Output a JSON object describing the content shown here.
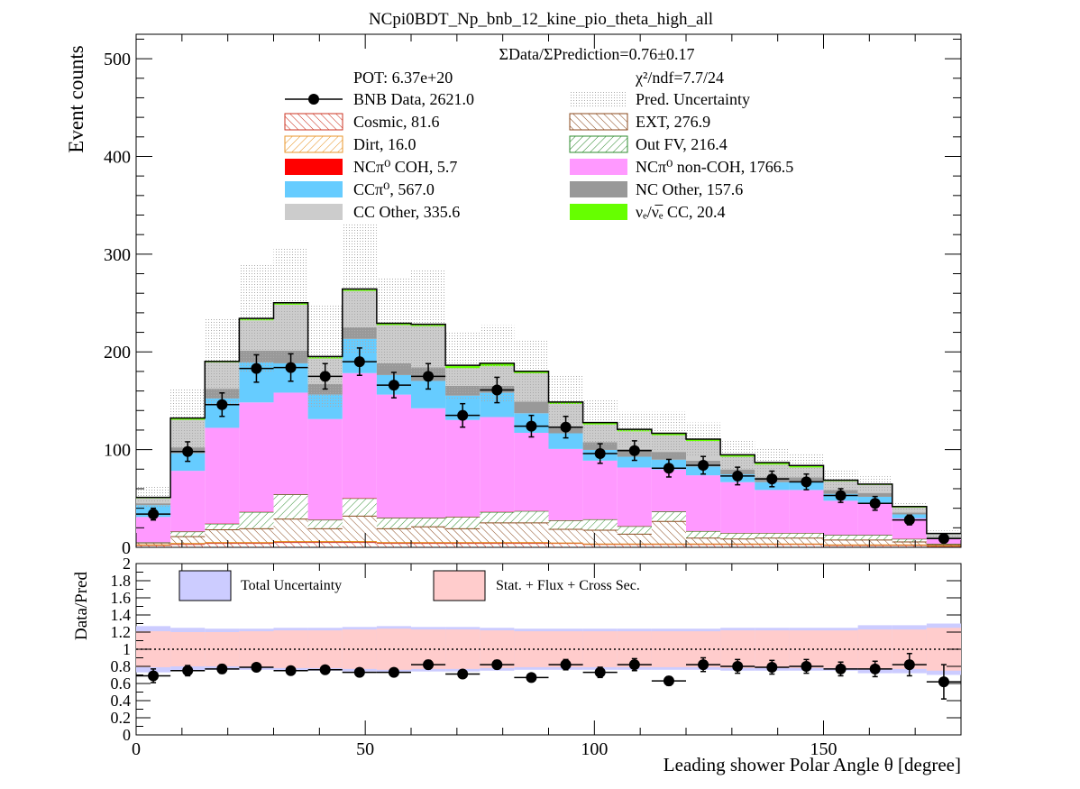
{
  "chart_data": [
    {
      "type": "bar",
      "stacked": true,
      "title": "NCpi0BDT_Np_bnb_12_kine_pio_theta_high_all",
      "xlabel": "Leading shower Polar Angle θ [degree]",
      "ylabel": "Event counts",
      "xlim": [
        0,
        180
      ],
      "ylim": [
        0,
        525
      ],
      "yticks": [
        0,
        100,
        200,
        300,
        400,
        500
      ],
      "bin_edges": [
        0,
        7.5,
        15,
        22.5,
        30,
        37.5,
        45,
        52.5,
        60,
        67.5,
        75,
        82.5,
        90,
        97.5,
        105,
        112.5,
        120,
        127.5,
        135,
        142.5,
        150,
        157.5,
        165,
        172.5,
        180
      ],
      "summary_text": {
        "ratio": "ΣData/ΣPrediction=0.76±0.17",
        "pot": "POT: 6.37e+20",
        "chi2": "χ²/ndf=7.7/24"
      },
      "legend": [
        {
          "label": "BNB Data, 2621.0",
          "style": "marker",
          "color": "#000000"
        },
        {
          "label": "Pred. Uncertainty",
          "style": "dots",
          "color": "#bbbbbb"
        },
        {
          "label": "Cosmic, 81.6",
          "style": "hatch",
          "color": "#cc3322"
        },
        {
          "label": "EXT, 276.9",
          "style": "hatch",
          "color": "#8b4a1e"
        },
        {
          "label": "Dirt, 16.0",
          "style": "hatch",
          "color": "#e8962a"
        },
        {
          "label": "Out FV, 216.4",
          "style": "hatch",
          "color": "#2e8b2e"
        },
        {
          "label": "NCπ⁰ COH,  5.7",
          "style": "fill",
          "color": "#ff0000"
        },
        {
          "label": "NCπ⁰ non-COH,  1766.5",
          "style": "fill",
          "color": "#ff99ff"
        },
        {
          "label": "CCπ⁰, 567.0",
          "style": "fill",
          "color": "#66ccff"
        },
        {
          "label": "NC Other, 157.6",
          "style": "fill",
          "color": "#999999"
        },
        {
          "label": "CC Other, 335.6",
          "style": "fill",
          "color": "#cccccc"
        },
        {
          "label": "νₑ/ν̅ₑ CC, 20.4",
          "style": "fill",
          "color": "#66ff00"
        }
      ],
      "series": [
        {
          "name": "Cosmic, 81.6",
          "color": "#cc3322",
          "style": "hatch",
          "values": [
            2,
            3,
            4,
            4,
            5,
            5,
            5,
            4,
            4,
            4,
            4,
            4,
            4,
            3,
            3,
            3,
            3,
            3,
            3,
            3,
            2,
            2,
            2,
            1
          ]
        },
        {
          "name": "Dirt, 16.0",
          "color": "#e8962a",
          "style": "hatch",
          "values": [
            0.5,
            1,
            1,
            1,
            1,
            1,
            1,
            1,
            1,
            1,
            1,
            1,
            0.5,
            0.5,
            0.5,
            0.5,
            0.5,
            0.5,
            0.5,
            0.5,
            0.5,
            0.5,
            0.5,
            0.5
          ]
        },
        {
          "name": "EXT, 276.9",
          "color": "#8b4a1e",
          "style": "hatch",
          "values": [
            2,
            7,
            13,
            14,
            23,
            13,
            26,
            14,
            16,
            14,
            20,
            20,
            14,
            14,
            10,
            23,
            6,
            5,
            6,
            6,
            5,
            5,
            3,
            1
          ]
        },
        {
          "name": "Out FV, 216.4",
          "color": "#2e8b2e",
          "style": "hatch",
          "values": [
            0.5,
            5,
            6,
            17,
            25,
            9,
            18,
            11,
            9,
            12,
            11,
            12,
            9,
            11,
            8,
            10,
            7,
            6,
            5,
            5,
            5,
            5,
            3,
            1
          ]
        },
        {
          "name": "NCπ⁰ COH,  5.7",
          "color": "#ff0000",
          "style": "fill",
          "values": [
            0.1,
            0.3,
            0.3,
            0.3,
            0.3,
            0.3,
            0.3,
            0.3,
            0.3,
            0.3,
            0.3,
            0.2,
            0.2,
            0.2,
            0.2,
            0.2,
            0.2,
            0.2,
            0.2,
            0.2,
            0.2,
            0.2,
            0.2,
            0.2
          ]
        },
        {
          "name": "NCπ⁰ non-COH,  1766.5",
          "color": "#ff99ff",
          "style": "fill",
          "values": [
            26,
            62,
            98,
            112,
            104,
            103,
            128,
            126,
            112,
            99,
            97,
            80,
            73,
            60,
            60,
            43,
            57,
            52,
            44,
            44,
            35,
            33,
            21,
            5
          ]
        },
        {
          "name": "CCπ⁰, 567.0",
          "color": "#66ccff",
          "style": "fill",
          "values": [
            12,
            18,
            30,
            41,
            30,
            25,
            35,
            20,
            28,
            25,
            25,
            20,
            16,
            11,
            11,
            10,
            9,
            8,
            8,
            8,
            7,
            6,
            4,
            1
          ]
        },
        {
          "name": "NC Other, 157.6",
          "color": "#999999",
          "style": "fill",
          "values": [
            2,
            6,
            10,
            12,
            13,
            11,
            12,
            12,
            14,
            10,
            7,
            12,
            6,
            8,
            8,
            8,
            6,
            5,
            5,
            5,
            4,
            4,
            2,
            1
          ]
        },
        {
          "name": "CC Other, 335.6",
          "color": "#cccccc",
          "style": "fill",
          "values": [
            5,
            28,
            27,
            31,
            47,
            26,
            37,
            39,
            42,
            18,
            20,
            29,
            24,
            18,
            18,
            17,
            20,
            13,
            13,
            10,
            9,
            8,
            5,
            3
          ]
        },
        {
          "name": "νₑ/ν̅ₑ CC, 20.4",
          "color": "#66ff00",
          "style": "fill",
          "values": [
            1,
            2,
            1,
            2,
            2,
            2,
            2,
            2,
            2,
            3,
            3,
            2,
            2,
            2,
            2,
            2,
            2,
            2,
            2,
            2,
            1,
            1,
            1,
            0.5
          ]
        }
      ],
      "prediction_uncertainty": [
        11,
        31,
        44,
        56,
        56,
        52,
        66,
        46,
        55,
        35,
        39,
        32,
        28,
        24,
        18,
        22,
        17,
        15,
        15,
        12,
        10,
        8,
        5,
        3
      ],
      "data_points": {
        "name": "BNB Data, 2621.0",
        "x": [
          3.75,
          11.25,
          18.75,
          26.25,
          33.75,
          41.25,
          48.75,
          56.25,
          63.75,
          71.25,
          78.75,
          86.25,
          93.75,
          101.25,
          108.75,
          116.25,
          123.75,
          131.25,
          138.75,
          146.25,
          153.75,
          161.25,
          168.75,
          176.25
        ],
        "y": [
          34,
          98,
          146,
          183,
          184,
          175,
          190,
          166,
          175,
          135,
          161,
          124,
          123,
          96,
          99,
          81,
          84,
          73,
          70,
          67,
          53,
          45,
          28,
          9
        ],
        "yerr": [
          6,
          10,
          12,
          14,
          14,
          13,
          14,
          13,
          13,
          12,
          13,
          11,
          11,
          10,
          10,
          9,
          9,
          9,
          8,
          8,
          7,
          7,
          5,
          3
        ]
      }
    },
    {
      "type": "scatter",
      "title": "",
      "xlabel": "Leading shower Polar Angle θ [degree]",
      "ylabel": "Data/Pred",
      "xlim": [
        0,
        180
      ],
      "ylim": [
        0,
        2
      ],
      "xticks": [
        0,
        50,
        100,
        150
      ],
      "yticks": [
        0,
        0.2,
        0.4,
        0.6,
        0.8,
        1,
        1.2,
        1.4,
        1.6,
        1.8,
        2
      ],
      "ytick_labels": [
        "0",
        "0.2",
        "0.4",
        "0.6",
        "0.8",
        "1",
        "1.2",
        "1.4",
        "1.6",
        "1.8",
        "2"
      ],
      "xtick_labels": [
        "0",
        "50",
        "100",
        "150"
      ],
      "reference_line": 1,
      "legend": [
        {
          "label": "Total Uncertainty",
          "color": "#ccccff"
        },
        {
          "label": "Stat. + Flux + Cross Sec.",
          "color": "#ffcccc"
        }
      ],
      "bands": {
        "total_uncertainty": [
          0.27,
          0.25,
          0.24,
          0.24,
          0.25,
          0.25,
          0.26,
          0.27,
          0.26,
          0.26,
          0.25,
          0.24,
          0.24,
          0.24,
          0.24,
          0.24,
          0.24,
          0.25,
          0.25,
          0.25,
          0.25,
          0.28,
          0.28,
          0.3
        ],
        "stat_flux_xsec": [
          0.21,
          0.2,
          0.2,
          0.21,
          0.22,
          0.22,
          0.23,
          0.24,
          0.23,
          0.23,
          0.22,
          0.21,
          0.21,
          0.21,
          0.21,
          0.21,
          0.21,
          0.22,
          0.22,
          0.22,
          0.22,
          0.23,
          0.23,
          0.25
        ]
      },
      "x": [
        3.75,
        11.25,
        18.75,
        26.25,
        33.75,
        41.25,
        48.75,
        56.25,
        63.75,
        71.25,
        78.75,
        86.25,
        93.75,
        101.25,
        108.75,
        116.25,
        123.75,
        131.25,
        138.75,
        146.25,
        153.75,
        161.25,
        168.75,
        176.25
      ],
      "y": [
        0.69,
        0.75,
        0.77,
        0.79,
        0.75,
        0.76,
        0.73,
        0.73,
        0.82,
        0.71,
        0.82,
        0.67,
        0.82,
        0.73,
        0.82,
        0.63,
        0.82,
        0.8,
        0.79,
        0.8,
        0.77,
        0.77,
        0.82,
        0.62
      ],
      "yerr": [
        0.08,
        0.06,
        0.05,
        0.04,
        0.04,
        0.04,
        0.04,
        0.04,
        0.05,
        0.04,
        0.05,
        0.04,
        0.06,
        0.06,
        0.07,
        0.05,
        0.08,
        0.08,
        0.08,
        0.08,
        0.08,
        0.09,
        0.13,
        0.2
      ]
    }
  ]
}
